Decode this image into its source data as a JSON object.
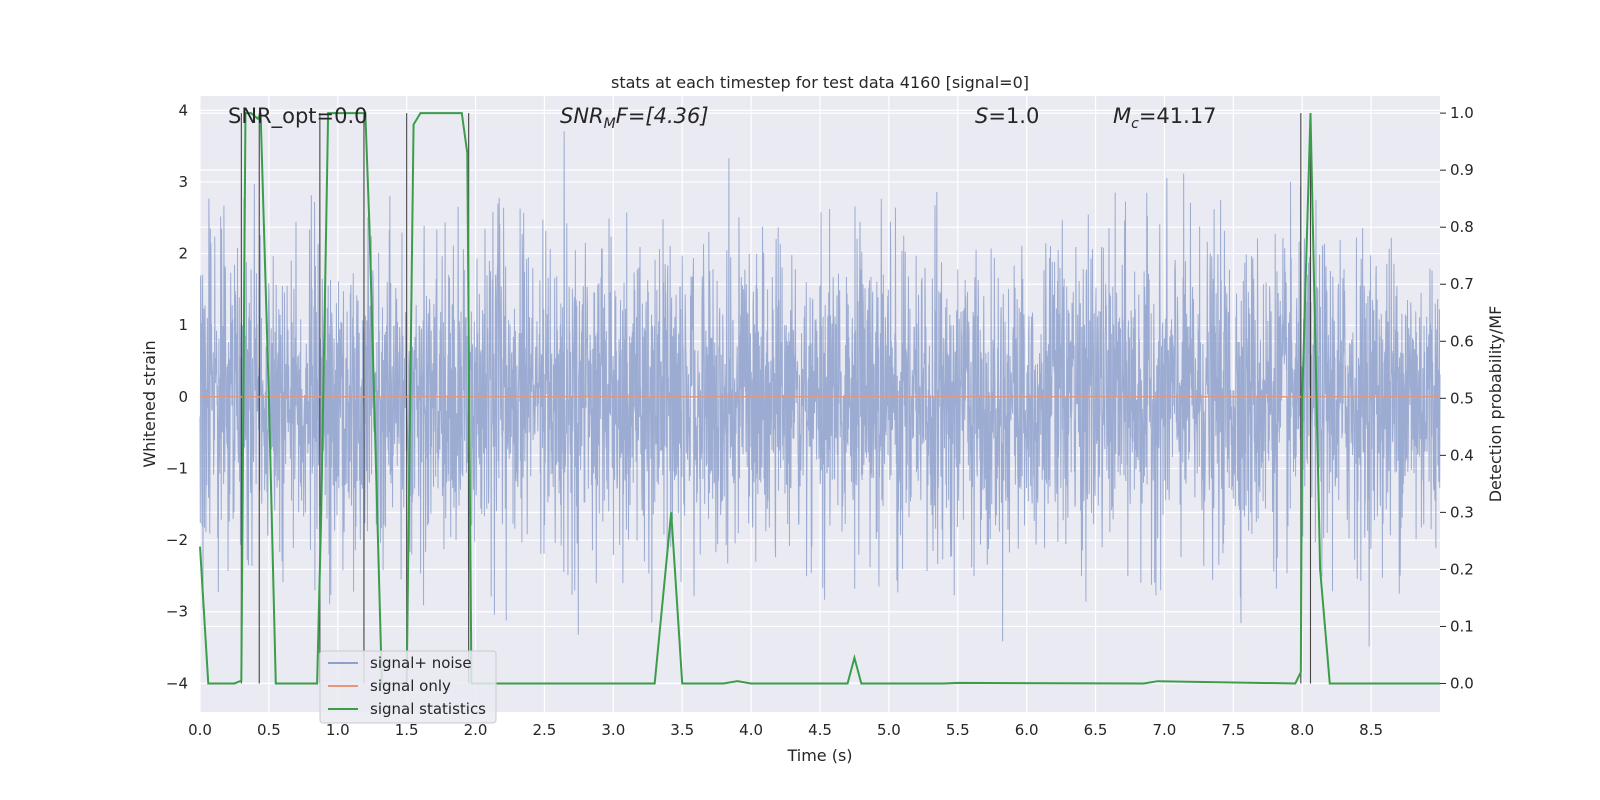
{
  "chart_data": {
    "type": "line",
    "title": "stats at each timestep for test data 4160 [signal=0]",
    "xlabel": "Time (s)",
    "ylabel": "Whitened strain",
    "y2label": "Detection probability/MF",
    "xlim": [
      0,
      9
    ],
    "ylim": [
      -4.4,
      4.2
    ],
    "y2lim": [
      -0.05,
      1.03
    ],
    "xticks": [
      "0.0",
      "0.5",
      "1.0",
      "1.5",
      "2.0",
      "2.5",
      "3.0",
      "3.5",
      "4.0",
      "4.5",
      "5.0",
      "5.5",
      "6.0",
      "6.5",
      "7.0",
      "7.5",
      "8.0",
      "8.5"
    ],
    "yticks": [
      "4",
      "3",
      "2",
      "1",
      "0",
      "−1",
      "−2",
      "−3",
      "−4"
    ],
    "y2ticks": [
      "1.0",
      "0.9",
      "0.8",
      "0.7",
      "0.6",
      "0.5",
      "0.4",
      "0.3",
      "0.2",
      "0.1",
      "0.0"
    ],
    "grid": true,
    "legend_position": "lower-left",
    "annotations": {
      "snr_opt": "SNR_opt=0.0",
      "snr_mf_main": "SNR",
      "snr_mf_sub": "M",
      "snr_mf_rest": "F=[4.36]",
      "s_main": "S",
      "s_rest": "=1.0",
      "mc_main": "M",
      "mc_sub": "c",
      "mc_rest": "=41.17"
    },
    "series": [
      {
        "name": "signal+ noise",
        "color": "#8da0cb",
        "note": "whitened noise, approx range -4 to 4"
      },
      {
        "name": "signal only",
        "color": "#e9967a",
        "values_constant": 0
      },
      {
        "name": "signal statistics",
        "color": "#3b9d4a",
        "x": [
          0.0,
          0.06,
          0.25,
          0.3,
          0.33,
          0.37,
          0.42,
          0.44,
          0.5,
          0.55,
          0.85,
          0.88,
          0.93,
          0.95,
          1.0,
          1.2,
          1.23,
          1.32,
          1.5,
          1.55,
          1.6,
          1.9,
          1.94,
          1.97,
          2.05,
          3.3,
          3.42,
          3.5,
          3.6,
          3.8,
          3.9,
          4.0,
          4.7,
          4.75,
          4.8,
          5.4,
          5.5,
          6.85,
          6.95,
          7.95,
          7.99,
          8.0,
          8.06,
          8.13,
          8.2,
          9.0
        ],
        "values": [
          0.24,
          0.0,
          0.0,
          0.005,
          1.0,
          1.0,
          0.99,
          1.0,
          0.5,
          0.0,
          0.0,
          0.3,
          1.0,
          1.0,
          1.0,
          1.0,
          0.8,
          0.0,
          0.0,
          0.98,
          1.0,
          1.0,
          0.93,
          0.0,
          0.0,
          0.0,
          0.3,
          0.0,
          0.0,
          0.0,
          0.004,
          0.0,
          0.0,
          0.045,
          0.0,
          0.0,
          0.001,
          0.0,
          0.004,
          0.0,
          0.02,
          0.5,
          1.0,
          0.2,
          0.0,
          0.0
        ]
      }
    ],
    "vertical_markers_x": [
      0.3,
      0.43,
      0.87,
      1.19,
      1.5,
      1.95,
      7.99,
      8.06
    ]
  }
}
